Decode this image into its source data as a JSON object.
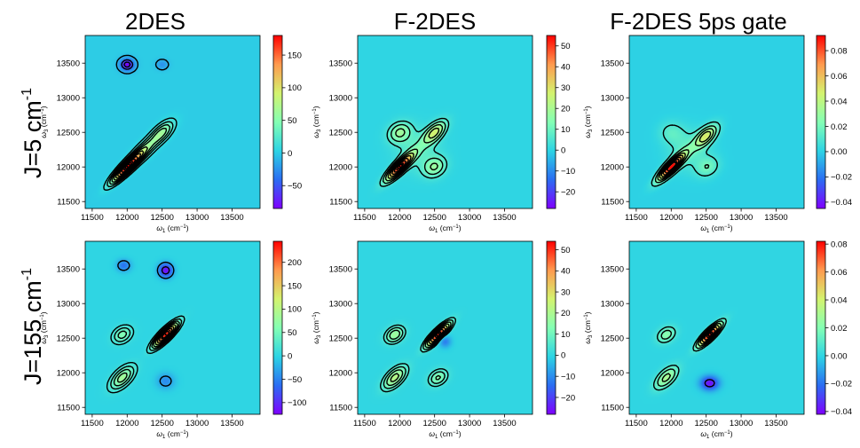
{
  "colors": {
    "background": "#35e6c6",
    "contour": "#000000",
    "colormap": [
      "#7f00ff",
      "#2b6df2",
      "#2dd4e4",
      "#84ffb4",
      "#d4f36e",
      "#ff9a4f",
      "#ff0000"
    ]
  },
  "column_titles": [
    "2DES",
    "F-2DES",
    "F-2DES 5ps gate"
  ],
  "row_titles": [
    "J=5 cm",
    "J=155 cm"
  ],
  "row_title_superscript": "-1",
  "chart_data": [
    {
      "type": "heatmap",
      "name": "2DES, J=5 cm-1",
      "xlabel_parts": [
        "ω",
        "1",
        " (cm",
        "−1",
        ")"
      ],
      "ylabel_parts": [
        "ω",
        "3",
        " (cm",
        "−1",
        ")"
      ],
      "xlim": [
        11400,
        13900
      ],
      "ylim": [
        11400,
        13900
      ],
      "xticks": [
        11500,
        12000,
        12500,
        13000,
        13500
      ],
      "xtick_labels": [
        "11500",
        "12000",
        "12500",
        "13000",
        "13500"
      ],
      "yticks": [
        11500,
        12000,
        12500,
        13000,
        13500
      ],
      "ytick_labels": [
        "11500",
        "12000",
        "12500",
        "13000",
        "13500"
      ],
      "colorbar": {
        "min": -85,
        "max": 180,
        "ticks": [
          -50,
          0,
          50,
          100,
          150
        ],
        "tick_labels": [
          "−50",
          "0",
          "50",
          "100",
          "150"
        ]
      },
      "peaks": [
        {
          "x": 12000,
          "y": 12000,
          "amplitude": 175,
          "sx": 140,
          "sy": 140,
          "rho": 0.9
        },
        {
          "x": 12250,
          "y": 12250,
          "amplitude": 48,
          "sx": 150,
          "sy": 150,
          "rho": 0.8
        },
        {
          "x": 12500,
          "y": 12500,
          "amplitude": 55,
          "sx": 110,
          "sy": 110,
          "rho": 0.65
        },
        {
          "x": 12000,
          "y": 13480,
          "amplitude": -85,
          "sx": 70,
          "sy": 60,
          "rho": 0
        },
        {
          "x": 12500,
          "y": 13480,
          "amplitude": -25,
          "sx": 60,
          "sy": 50,
          "rho": 0
        }
      ],
      "contour_levels": [
        -70,
        -45,
        -8,
        10,
        22,
        36,
        52,
        70,
        90,
        110,
        130,
        150,
        170
      ]
    },
    {
      "type": "heatmap",
      "name": "F-2DES, J=5 cm-1",
      "xlabel_parts": [
        "ω",
        "1",
        " (cm",
        "−1",
        ")"
      ],
      "ylabel_parts": [
        "ω",
        "3",
        " (cm",
        "−1",
        ")"
      ],
      "xlim": [
        11400,
        13900
      ],
      "ylim": [
        11400,
        13900
      ],
      "xticks": [
        11500,
        12000,
        12500,
        13000,
        13500
      ],
      "xtick_labels": [
        "11500",
        "12000",
        "12500",
        "13000",
        "13500"
      ],
      "yticks": [
        11500,
        12000,
        12500,
        13000,
        13500
      ],
      "ytick_labels": [
        "11500",
        "12000",
        "12500",
        "13000",
        "13500"
      ],
      "colorbar": {
        "min": -28,
        "max": 55,
        "ticks": [
          -20,
          -10,
          0,
          10,
          20,
          30,
          40,
          50
        ],
        "tick_labels": [
          "−20",
          "−10",
          "0",
          "10",
          "20",
          "30",
          "40",
          "50"
        ]
      },
      "peaks": [
        {
          "x": 12000,
          "y": 12000,
          "amplitude": 52,
          "sx": 130,
          "sy": 130,
          "rho": 0.85
        },
        {
          "x": 12500,
          "y": 12500,
          "amplitude": 26,
          "sx": 110,
          "sy": 110,
          "rho": 0.6
        },
        {
          "x": 12000,
          "y": 12500,
          "amplitude": 17,
          "sx": 110,
          "sy": 100,
          "rho": 0.2
        },
        {
          "x": 12500,
          "y": 12000,
          "amplitude": 16,
          "sx": 110,
          "sy": 100,
          "rho": 0.2
        },
        {
          "x": 12250,
          "y": 12250,
          "amplitude": 8,
          "sx": 200,
          "sy": 200,
          "rho": 0
        }
      ],
      "contour_levels": [
        5,
        10,
        16,
        23,
        30,
        37,
        44,
        50
      ]
    },
    {
      "type": "heatmap",
      "name": "F-2DES 5ps gate, J=5 cm-1",
      "xlabel_parts": [
        "ω",
        "1",
        " (cm",
        "−1",
        ")"
      ],
      "ylabel_parts": [
        "ω",
        "3",
        " (cm",
        "−1",
        ")"
      ],
      "xlim": [
        11400,
        13900
      ],
      "ylim": [
        11400,
        13900
      ],
      "xticks": [
        11500,
        12000,
        12500,
        13000,
        13500
      ],
      "xtick_labels": [
        "11500",
        "12000",
        "12500",
        "13000",
        "13500"
      ],
      "yticks": [
        11500,
        12000,
        12500,
        13000,
        13500
      ],
      "ytick_labels": [
        "11500",
        "12000",
        "12500",
        "13000",
        "13500"
      ],
      "colorbar": {
        "min": -0.045,
        "max": 0.092,
        "ticks": [
          -0.04,
          -0.02,
          0.0,
          0.02,
          0.04,
          0.06,
          0.08
        ],
        "tick_labels": [
          "−0.04",
          "−0.02",
          "0.00",
          "0.02",
          "0.04",
          "0.06",
          "0.08"
        ]
      },
      "peaks": [
        {
          "x": 12000,
          "y": 12000,
          "amplitude": 0.09,
          "sx": 130,
          "sy": 130,
          "rho": 0.85
        },
        {
          "x": 12500,
          "y": 12450,
          "amplitude": 0.045,
          "sx": 110,
          "sy": 110,
          "rho": 0.6
        },
        {
          "x": 12000,
          "y": 12500,
          "amplitude": 0.012,
          "sx": 120,
          "sy": 110,
          "rho": 0
        },
        {
          "x": 12520,
          "y": 12000,
          "amplitude": 0.018,
          "sx": 110,
          "sy": 100,
          "rho": 0.2
        },
        {
          "x": 12250,
          "y": 12250,
          "amplitude": 0.014,
          "sx": 200,
          "sy": 200,
          "rho": 0
        }
      ],
      "contour_levels": [
        0.009,
        0.02,
        0.03,
        0.04,
        0.05,
        0.06,
        0.07,
        0.08
      ]
    },
    {
      "type": "heatmap",
      "name": "2DES, J=155 cm-1",
      "xlabel_parts": [
        "ω",
        "1",
        " (cm",
        "−1",
        ")"
      ],
      "ylabel_parts": [
        "ω",
        "3",
        " (cm",
        "−1",
        ")"
      ],
      "xlim": [
        11400,
        13900
      ],
      "ylim": [
        11400,
        13900
      ],
      "xticks": [
        11500,
        12000,
        12500,
        13000,
        13500
      ],
      "xtick_labels": [
        "11500",
        "12000",
        "12500",
        "13000",
        "13500"
      ],
      "yticks": [
        11500,
        12000,
        12500,
        13000,
        13500
      ],
      "ytick_labels": [
        "11500",
        "12000",
        "12500",
        "13000",
        "13500"
      ],
      "colorbar": {
        "min": -125,
        "max": 245,
        "ticks": [
          -100,
          -50,
          0,
          50,
          100,
          150,
          200
        ],
        "tick_labels": [
          "−100",
          "−50",
          "0",
          "50",
          "100",
          "150",
          "200"
        ]
      },
      "peaks": [
        {
          "x": 12550,
          "y": 12550,
          "amplitude": 240,
          "sx": 110,
          "sy": 110,
          "rho": 0.85
        },
        {
          "x": 11930,
          "y": 12550,
          "amplitude": 60,
          "sx": 90,
          "sy": 80,
          "rho": 0.3
        },
        {
          "x": 11930,
          "y": 11930,
          "amplitude": 85,
          "sx": 110,
          "sy": 110,
          "rho": 0.6
        },
        {
          "x": 12550,
          "y": 11880,
          "amplitude": -45,
          "sx": 90,
          "sy": 80,
          "rho": 0
        },
        {
          "x": 11950,
          "y": 13550,
          "amplitude": -60,
          "sx": 70,
          "sy": 60,
          "rho": 0
        },
        {
          "x": 12550,
          "y": 13480,
          "amplitude": -120,
          "sx": 70,
          "sy": 70,
          "rho": 0
        }
      ],
      "contour_levels": [
        -90,
        -30,
        12,
        28,
        48,
        70,
        100,
        135,
        170,
        205,
        235
      ]
    },
    {
      "type": "heatmap",
      "name": "F-2DES, J=155 cm-1",
      "xlabel_parts": [
        "ω",
        "1",
        " (cm",
        "−1",
        ")"
      ],
      "ylabel_parts": [
        "ω",
        "3",
        " (cm",
        "−1",
        ")"
      ],
      "xlim": [
        11400,
        13900
      ],
      "ylim": [
        11400,
        13900
      ],
      "xticks": [
        11500,
        12000,
        12500,
        13000,
        13500
      ],
      "xtick_labels": [
        "11500",
        "12000",
        "12500",
        "13000",
        "13500"
      ],
      "yticks": [
        11500,
        12000,
        12500,
        13000,
        13500
      ],
      "ytick_labels": [
        "11500",
        "12000",
        "12500",
        "13000",
        "13500"
      ],
      "colorbar": {
        "min": -28,
        "max": 54,
        "ticks": [
          -20,
          -10,
          0,
          10,
          20,
          30,
          40,
          50
        ],
        "tick_labels": [
          "−20",
          "−10",
          "0",
          "10",
          "20",
          "30",
          "40",
          "50"
        ]
      },
      "peaks": [
        {
          "x": 12550,
          "y": 12550,
          "amplitude": 53,
          "sx": 110,
          "sy": 110,
          "rho": 0.85
        },
        {
          "x": 11930,
          "y": 12550,
          "amplitude": 18,
          "sx": 90,
          "sy": 80,
          "rho": 0.3
        },
        {
          "x": 11930,
          "y": 11930,
          "amplitude": 22,
          "sx": 110,
          "sy": 110,
          "rho": 0.6
        },
        {
          "x": 12550,
          "y": 11930,
          "amplitude": 14,
          "sx": 90,
          "sy": 80,
          "rho": 0.3
        },
        {
          "x": 12650,
          "y": 12450,
          "amplitude": -12,
          "sx": 60,
          "sy": 60,
          "rho": 0
        }
      ],
      "contour_levels": [
        4,
        8,
        13,
        19,
        26,
        33,
        40,
        47
      ]
    },
    {
      "type": "heatmap",
      "name": "F-2DES 5ps gate, J=155 cm-1",
      "xlabel_parts": [
        "ω",
        "1",
        " (cm",
        "−1",
        ")"
      ],
      "ylabel_parts": [
        "ω",
        "3",
        " (cm",
        "−1",
        ")"
      ],
      "xlim": [
        11400,
        13900
      ],
      "ylim": [
        11400,
        13900
      ],
      "xticks": [
        11500,
        12000,
        12500,
        13000,
        13500
      ],
      "xtick_labels": [
        "11500",
        "12000",
        "12500",
        "13000",
        "13500"
      ],
      "yticks": [
        11500,
        12000,
        12500,
        13000,
        13500
      ],
      "ytick_labels": [
        "11500",
        "12000",
        "12500",
        "13000",
        "13500"
      ],
      "colorbar": {
        "min": -0.042,
        "max": 0.082,
        "ticks": [
          -0.04,
          -0.02,
          0.0,
          0.02,
          0.04,
          0.06,
          0.08
        ],
        "tick_labels": [
          "−0.04",
          "−0.02",
          "0.00",
          "0.02",
          "0.04",
          "0.06",
          "0.08"
        ]
      },
      "peaks": [
        {
          "x": 12550,
          "y": 12550,
          "amplitude": 0.08,
          "sx": 110,
          "sy": 110,
          "rho": 0.85
        },
        {
          "x": 11930,
          "y": 12550,
          "amplitude": 0.022,
          "sx": 90,
          "sy": 80,
          "rho": 0.3
        },
        {
          "x": 11930,
          "y": 11930,
          "amplitude": 0.03,
          "sx": 110,
          "sy": 110,
          "rho": 0.6
        },
        {
          "x": 12550,
          "y": 11850,
          "amplitude": -0.04,
          "sx": 90,
          "sy": 70,
          "rho": 0
        }
      ],
      "contour_levels": [
        -0.03,
        0.008,
        0.016,
        0.026,
        0.037,
        0.048,
        0.06,
        0.072
      ]
    }
  ]
}
